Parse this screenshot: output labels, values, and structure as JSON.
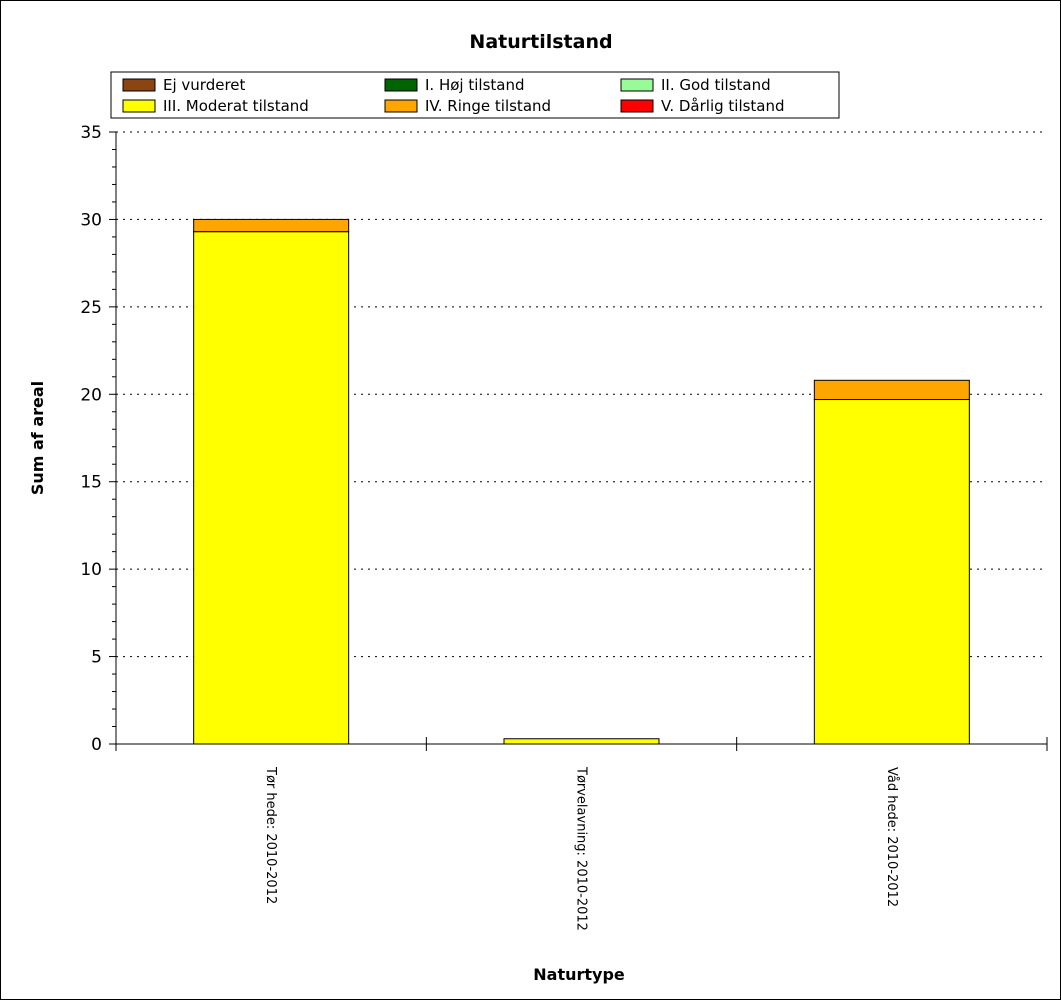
{
  "chart_data": {
    "type": "bar",
    "stacked": true,
    "title": "Naturtilstand",
    "xlabel": "Naturtype",
    "ylabel": "Sum af areal",
    "ylim": [
      0,
      35
    ],
    "yticks": [
      0,
      5,
      10,
      15,
      20,
      25,
      30,
      35
    ],
    "grid": "horizontal dotted",
    "legend_position": "top",
    "categories": [
      "Tør hede: 2010-2012",
      "Tørvelavning: 2010-2012",
      "Våd hede: 2010-2012"
    ],
    "series": [
      {
        "name": "Ej vurderet",
        "color": "#8B4513",
        "values": [
          0,
          0,
          0
        ]
      },
      {
        "name": "I. Høj tilstand",
        "color": "#006400",
        "values": [
          0,
          0,
          0
        ]
      },
      {
        "name": "II. God tilstand",
        "color": "#98FB98",
        "values": [
          0,
          0,
          0
        ]
      },
      {
        "name": "III. Moderat tilstand",
        "color": "#FFFF00",
        "values": [
          29.3,
          0.3,
          19.7
        ]
      },
      {
        "name": "IV. Ringe tilstand",
        "color": "#FFA500",
        "values": [
          0.7,
          0,
          1.1
        ]
      },
      {
        "name": "V. Dårlig tilstand",
        "color": "#FF0000",
        "values": [
          0,
          0,
          0
        ]
      }
    ]
  }
}
